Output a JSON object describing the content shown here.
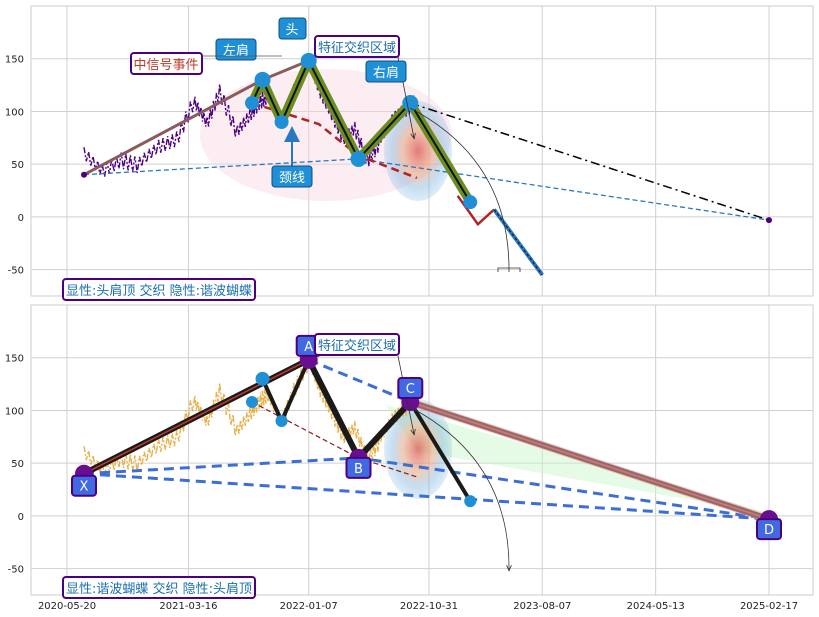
{
  "x_ticks": [
    "2020-05-20",
    "2021-03-16",
    "2022-01-07",
    "2022-10-31",
    "2023-08-07",
    "2024-05-13",
    "2025-02-17"
  ],
  "y_ticks": [
    150,
    100,
    50,
    0,
    -50
  ],
  "chart_data": [
    {
      "type": "line",
      "panel": "top",
      "ylim": [
        -75,
        200
      ],
      "grid": true,
      "annotations": {
        "legend_box": "显性:头肩顶 交织 隐性:谐波蝴蝶",
        "signal_event": "中信号事件",
        "feature_zone": "特征交织区域",
        "left_shoulder": "左肩",
        "head": "头",
        "right_shoulder": "右肩",
        "neckline": "颈线"
      },
      "series": [
        {
          "role": "price",
          "x": [
            "2020-07-01",
            "2020-08-15",
            "2020-10-01",
            "2020-11-15",
            "2021-01-01",
            "2021-02-15",
            "2021-04-01",
            "2021-05-01",
            "2021-06-01",
            "2021-07-15",
            "2021-08-15",
            "2021-09-10",
            "2021-10-01",
            "2021-11-01",
            "2021-12-01",
            "2022-01-07",
            "2022-02-01",
            "2022-03-01",
            "2022-04-01",
            "2022-05-01",
            "2022-06-01",
            "2022-07-01",
            "2022-08-01",
            "2022-09-01",
            "2022-10-01"
          ],
          "values": [
            62,
            45,
            55,
            50,
            65,
            72,
            110,
            90,
            120,
            80,
            95,
            108,
            115,
            90,
            120,
            148,
            120,
            100,
            75,
            85,
            55,
            72,
            90,
            100,
            108
          ]
        },
        {
          "role": "pattern",
          "x": [
            "2021-08-20",
            "2021-09-15",
            "2021-11-01",
            "2022-01-07",
            "2022-05-10",
            "2022-09-15",
            "2023-02-10"
          ],
          "values": [
            108,
            130,
            90,
            148,
            55,
            108,
            14
          ]
        },
        {
          "role": "signal-trend",
          "x": [
            "2020-07-01",
            "2021-09-15",
            "2022-01-07"
          ],
          "values": [
            40,
            130,
            148
          ]
        },
        {
          "role": "neckline",
          "x": [
            "2021-08-20",
            "2022-02-01",
            "2022-05-10",
            "2022-10-01"
          ],
          "values": [
            108,
            88,
            58,
            37
          ]
        },
        {
          "role": "projection",
          "x": [
            "2023-01-10",
            "2023-03-01",
            "2023-04-10",
            "2023-08-07"
          ],
          "values": [
            20,
            -7,
            7,
            -55
          ]
        },
        {
          "role": "target-line",
          "x": [
            "2022-09-15",
            "2025-02-17"
          ],
          "values": [
            108,
            -3
          ]
        },
        {
          "role": "baseline",
          "x": [
            "2020-07-01",
            "2022-05-10",
            "2025-02-17"
          ],
          "values": [
            40,
            55,
            -3
          ]
        }
      ]
    },
    {
      "type": "line",
      "panel": "bottom",
      "ylim": [
        -75,
        200
      ],
      "grid": true,
      "annotations": {
        "legend_box": "显性:谐波蝴蝶 交织 隐性:头肩顶",
        "feature_zone": "特征交织区域",
        "points": [
          "X",
          "A",
          "B",
          "C",
          "D"
        ]
      },
      "series": [
        {
          "role": "price",
          "x": [
            "2020-07-01",
            "2020-08-15",
            "2020-10-01",
            "2020-11-15",
            "2021-01-01",
            "2021-02-15",
            "2021-04-01",
            "2021-05-01",
            "2021-06-01",
            "2021-07-15",
            "2021-08-15",
            "2021-09-10",
            "2021-10-01",
            "2021-11-01",
            "2021-12-01",
            "2022-01-07",
            "2022-02-01",
            "2022-03-01",
            "2022-04-01",
            "2022-05-01",
            "2022-06-01",
            "2022-07-01",
            "2022-08-01",
            "2022-09-01",
            "2022-10-01"
          ],
          "values": [
            62,
            45,
            55,
            50,
            65,
            72,
            110,
            90,
            120,
            80,
            95,
            108,
            115,
            90,
            120,
            148,
            120,
            100,
            75,
            85,
            55,
            72,
            90,
            100,
            108
          ]
        },
        {
          "role": "harmonic-XABCD",
          "x": [
            "2020-07-01",
            "2022-01-07",
            "2022-05-10",
            "2022-09-15",
            "2025-02-17"
          ],
          "values": [
            40,
            148,
            55,
            108,
            -3
          ]
        },
        {
          "role": "head-shoulders-hidden",
          "x": [
            "2021-09-15",
            "2021-11-01",
            "2022-01-07",
            "2022-05-10",
            "2022-09-15",
            "2023-02-10"
          ],
          "values": [
            130,
            90,
            148,
            55,
            108,
            14
          ]
        },
        {
          "role": "outer-XB",
          "x": [
            "2020-07-01",
            "2022-05-10",
            "2025-02-17"
          ],
          "values": [
            40,
            55,
            -3
          ]
        }
      ]
    }
  ]
}
